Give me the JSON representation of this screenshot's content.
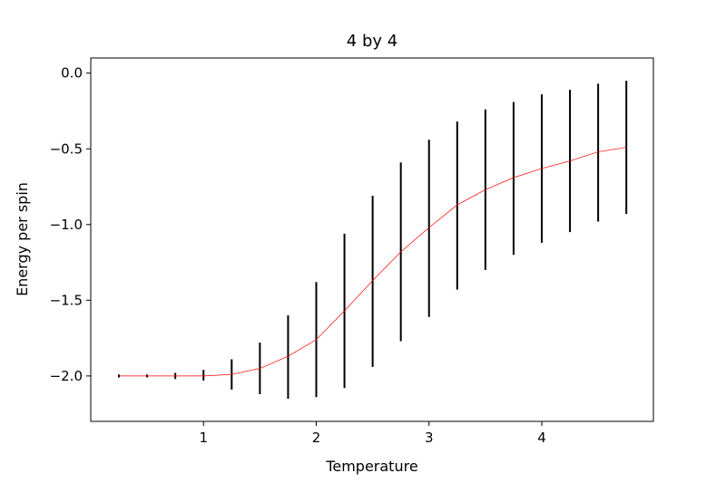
{
  "chart_data": {
    "type": "line",
    "title": "4 by 4",
    "xlabel": "Temperature",
    "ylabel": "Energy per spin",
    "xlim": [
      0.0,
      4.99
    ],
    "ylim": [
      -2.3,
      0.1
    ],
    "xticks": [
      1,
      2,
      3,
      4
    ],
    "xtick_labels": [
      "1",
      "2",
      "3",
      "4"
    ],
    "yticks": [
      0.0,
      -0.5,
      -1.0,
      -1.5,
      -2.0
    ],
    "ytick_labels": [
      "0.0",
      "−0.5",
      "−1.0",
      "−1.5",
      "−2.0"
    ],
    "grid": false,
    "series": [
      {
        "color": "#ff0000",
        "x": [
          0.25,
          0.5,
          0.75,
          1.0,
          1.25,
          1.5,
          1.75,
          2.0,
          2.25,
          2.5,
          2.75,
          3.0,
          3.25,
          3.5,
          3.75,
          4.0,
          4.25,
          4.5,
          4.75
        ],
        "y": [
          -2.0,
          -2.0,
          -2.0,
          -2.0,
          -1.99,
          -1.95,
          -1.87,
          -1.76,
          -1.57,
          -1.37,
          -1.18,
          -1.02,
          -0.87,
          -0.77,
          -0.69,
          -0.63,
          -0.58,
          -0.52,
          -0.49
        ],
        "err_low": [
          -2.01,
          -2.01,
          -2.02,
          -2.03,
          -2.09,
          -2.12,
          -2.15,
          -2.14,
          -2.08,
          -1.94,
          -1.77,
          -1.61,
          -1.43,
          -1.3,
          -1.2,
          -1.12,
          -1.05,
          -0.98,
          -0.93
        ],
        "err_high": [
          -1.99,
          -1.99,
          -1.98,
          -1.96,
          -1.89,
          -1.78,
          -1.6,
          -1.38,
          -1.06,
          -0.81,
          -0.59,
          -0.44,
          -0.32,
          -0.24,
          -0.19,
          -0.14,
          -0.11,
          -0.07,
          -0.05
        ],
        "err_color": "#000000"
      }
    ]
  }
}
